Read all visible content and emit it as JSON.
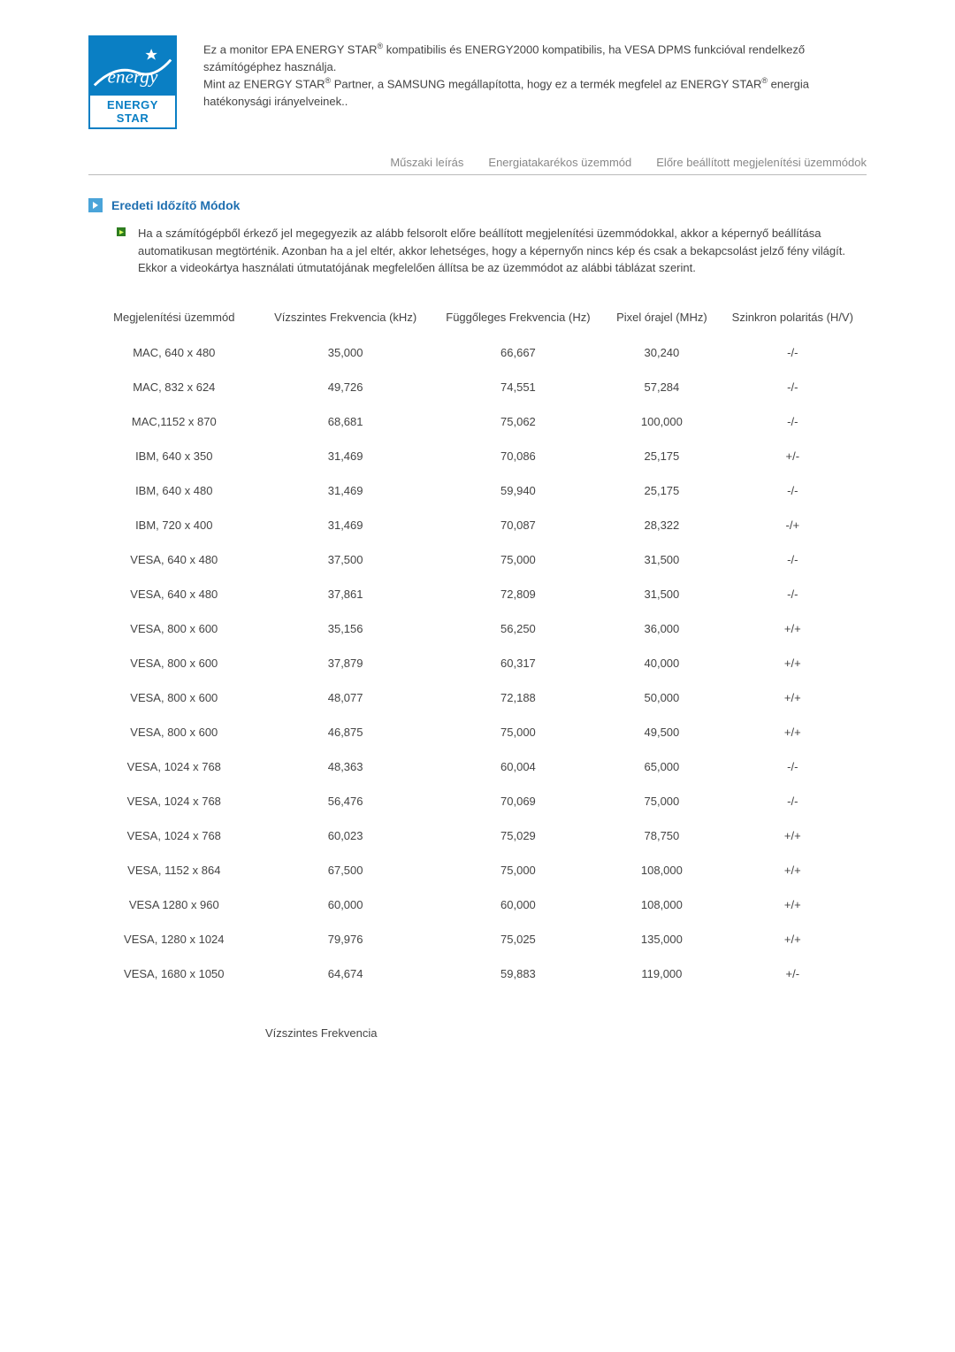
{
  "logo": {
    "label": "ENERGY STAR"
  },
  "intro_paragraph": {
    "line1_a": "Ez a monitor EPA ENERGY STAR",
    "line1_b": " kompatibilis és ENERGY2000 kompatibilis, ha VESA DPMS funkcióval rendelkező számítógéphez használja.",
    "line2_a": "Mint az ENERGY STAR",
    "line2_b": " Partner, a SAMSUNG megállapította, hogy ez a termék megfelel az ENERGY STAR",
    "line2_c": " energia hatékonysági irányelveinek.."
  },
  "tabs": {
    "t1": "Műszaki leírás",
    "t2": "Energiatakarékos üzemmód",
    "t3": "Előre beállított megjelenítési üzemmódok"
  },
  "section_title": "Eredeti Időzítő Módok",
  "section_intro": "Ha a számítógépből érkező jel megegyezik az alább felsorolt előre beállított megjelenítési üzemmódokkal, akkor a képernyő beállítása automatikusan megtörténik. Azonban ha a jel eltér, akkor lehetséges, hogy a képernyőn nincs kép és csak a bekapcsolást jelző fény világít. Ekkor a videokártya használati útmutatójának megfelelően állítsa be az üzemmódot az alábbi táblázat szerint.",
  "table": {
    "headers": {
      "mode": "Megjelenítési üzemmód",
      "hfreq": "Vízszintes Frekvencia (kHz)",
      "vfreq": "Függőleges Frekvencia (Hz)",
      "pclock": "Pixel órajel (MHz)",
      "sync": "Szinkron polaritás (H/V)"
    },
    "rows": [
      {
        "mode": "MAC, 640 x 480",
        "h": "35,000",
        "v": "66,667",
        "p": "30,240",
        "s": "-/-"
      },
      {
        "mode": "MAC, 832 x 624",
        "h": "49,726",
        "v": "74,551",
        "p": "57,284",
        "s": "-/-"
      },
      {
        "mode": "MAC,1152 x 870",
        "h": "68,681",
        "v": "75,062",
        "p": "100,000",
        "s": "-/-"
      },
      {
        "mode": "IBM, 640 x 350",
        "h": "31,469",
        "v": "70,086",
        "p": "25,175",
        "s": "+/-"
      },
      {
        "mode": "IBM, 640 x 480",
        "h": "31,469",
        "v": "59,940",
        "p": "25,175",
        "s": "-/-"
      },
      {
        "mode": "IBM, 720 x 400",
        "h": "31,469",
        "v": "70,087",
        "p": "28,322",
        "s": "-/+"
      },
      {
        "mode": "VESA, 640 x 480",
        "h": "37,500",
        "v": "75,000",
        "p": "31,500",
        "s": "-/-"
      },
      {
        "mode": "VESA, 640 x 480",
        "h": "37,861",
        "v": "72,809",
        "p": "31,500",
        "s": "-/-"
      },
      {
        "mode": "VESA, 800 x 600",
        "h": "35,156",
        "v": "56,250",
        "p": "36,000",
        "s": "+/+"
      },
      {
        "mode": "VESA, 800 x 600",
        "h": "37,879",
        "v": "60,317",
        "p": "40,000",
        "s": "+/+"
      },
      {
        "mode": "VESA, 800 x 600",
        "h": "48,077",
        "v": "72,188",
        "p": "50,000",
        "s": "+/+"
      },
      {
        "mode": "VESA, 800 x 600",
        "h": "46,875",
        "v": "75,000",
        "p": "49,500",
        "s": "+/+"
      },
      {
        "mode": "VESA, 1024 x 768",
        "h": "48,363",
        "v": "60,004",
        "p": "65,000",
        "s": "-/-"
      },
      {
        "mode": "VESA, 1024 x 768",
        "h": "56,476",
        "v": "70,069",
        "p": "75,000",
        "s": "-/-"
      },
      {
        "mode": "VESA, 1024 x 768",
        "h": "60,023",
        "v": "75,029",
        "p": "78,750",
        "s": "+/+"
      },
      {
        "mode": "VESA, 1152 x 864",
        "h": "67,500",
        "v": "75,000",
        "p": "108,000",
        "s": "+/+"
      },
      {
        "mode": "VESA 1280 x 960",
        "h": "60,000",
        "v": "60,000",
        "p": "108,000",
        "s": "+/+"
      },
      {
        "mode": "VESA, 1280 x 1024",
        "h": "79,976",
        "v": "75,025",
        "p": "135,000",
        "s": "+/+"
      },
      {
        "mode": "VESA, 1680 x 1050",
        "h": "64,674",
        "v": "59,883",
        "p": "119,000",
        "s": "+/-"
      }
    ]
  },
  "footer_label": "Vízszintes Frekvencia",
  "colors": {
    "brand_blue": "#0a7fc4",
    "link_blue": "#1f6fb0",
    "bullet_green": "#2e7d20"
  }
}
